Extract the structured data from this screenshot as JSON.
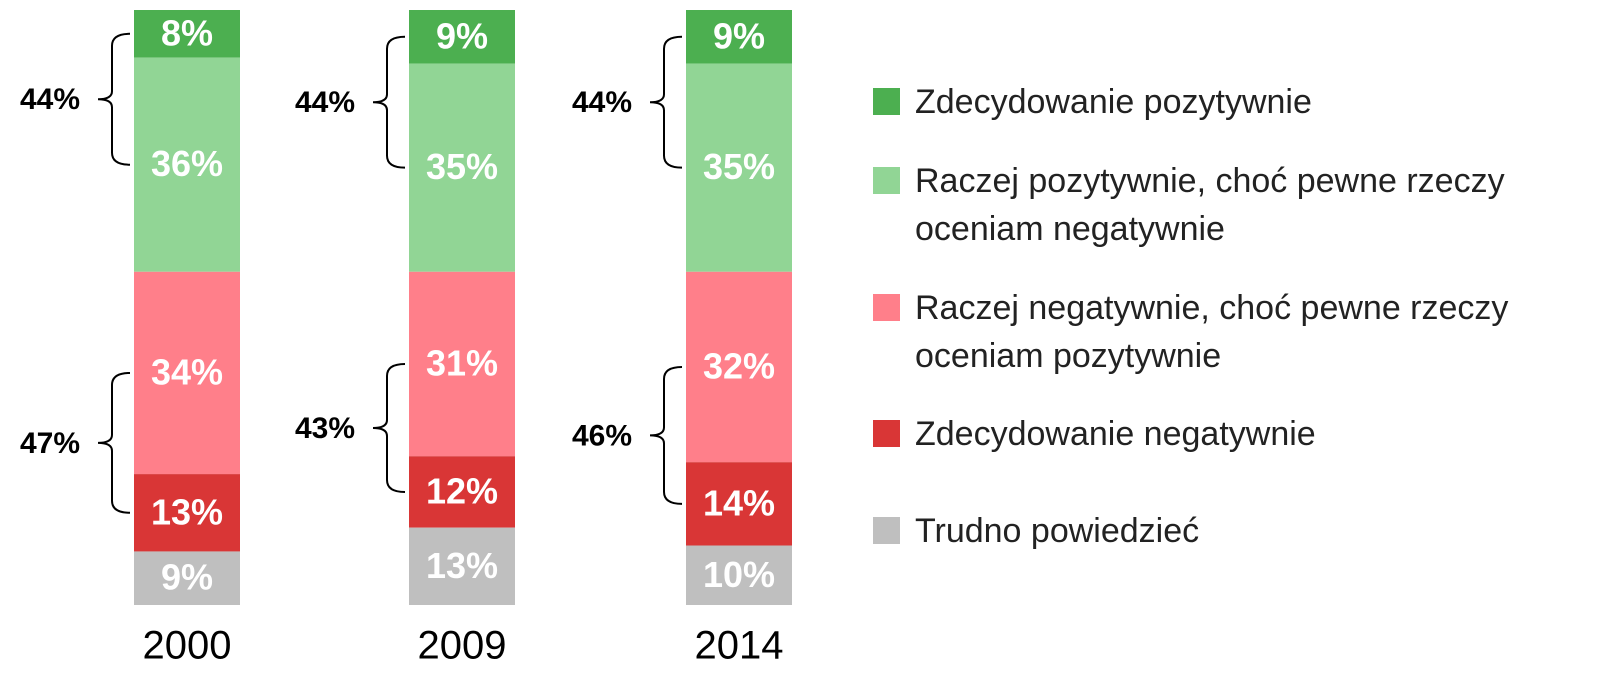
{
  "chart_data": {
    "type": "stacked_bar",
    "categories": [
      "2000",
      "2009",
      "2014"
    ],
    "ylim": [
      0,
      100
    ],
    "series": [
      {
        "name": "Zdecydowanie pozytywnie",
        "color": "#4caf50",
        "values": [
          8,
          9,
          9
        ],
        "value_labels": [
          "8%",
          "9%",
          "9%"
        ]
      },
      {
        "name": "Raczej pozytywnie, choć pewne rzeczy oceniam negatywnie",
        "color": "#91d595",
        "values": [
          36,
          35,
          35
        ],
        "value_labels": [
          "36%",
          "35%",
          "35%"
        ]
      },
      {
        "name": "Raczej negatywnie, choć pewne rzeczy oceniam pozytywnie",
        "color": "#ff7f8a",
        "values": [
          34,
          31,
          32
        ],
        "value_labels": [
          "34%",
          "31%",
          "32%"
        ]
      },
      {
        "name": "Zdecydowanie negatywnie",
        "color": "#d93636",
        "values": [
          13,
          12,
          14
        ],
        "value_labels": [
          "13%",
          "12%",
          "14%"
        ]
      },
      {
        "name": "Trudno powiedzieć",
        "color": "#bfbfbf",
        "values": [
          9,
          13,
          10
        ],
        "value_labels": [
          "9%",
          "13%",
          "10%"
        ]
      }
    ],
    "totals": [
      {
        "values": [
          44,
          44,
          44
        ],
        "value_labels": [
          "44%",
          "44%",
          "44%"
        ]
      },
      {
        "values": [
          47,
          43,
          46
        ],
        "value_labels": [
          "47%",
          "43%",
          "46%"
        ]
      }
    ]
  }
}
